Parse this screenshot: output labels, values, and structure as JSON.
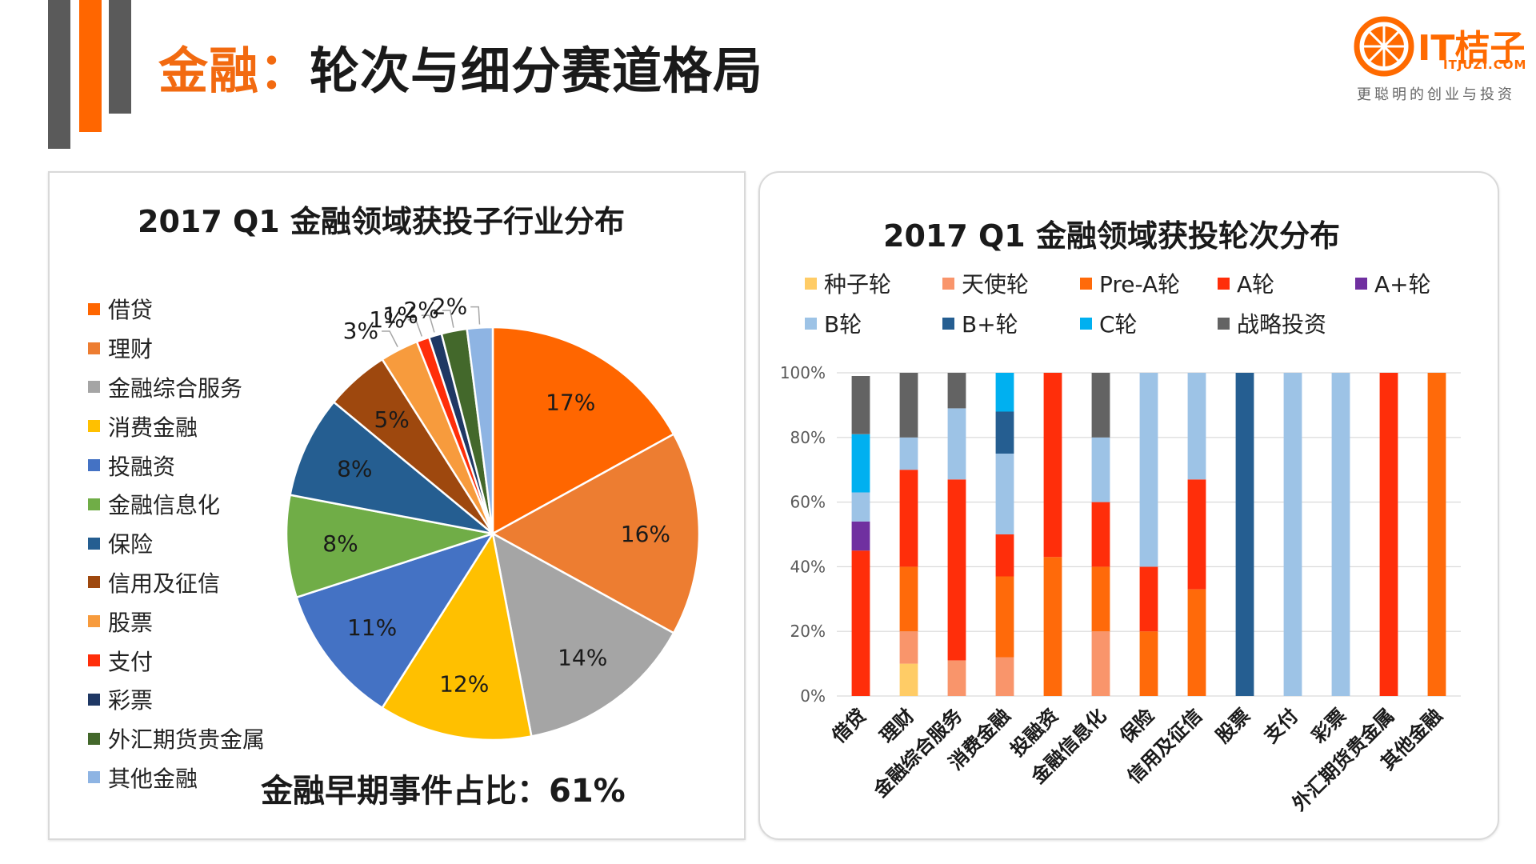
{
  "header": {
    "title_highlight": "金融：",
    "title_rest": "轮次与细分赛道格局"
  },
  "logo": {
    "brand": "IT桔子",
    "url": "ITJUZI.COM",
    "slogan": "更聪明的创业与投资",
    "brand_color": "#ff6a00"
  },
  "summary": "金融早期事件占比：61%",
  "chart_data": [
    {
      "type": "pie",
      "title": "2017 Q1 金融领域获投子行业分布",
      "categories": [
        "借贷",
        "理财",
        "金融综合服务",
        "消费金融",
        "投融资",
        "金融信息化",
        "保险",
        "信用及征信",
        "股票",
        "支付",
        "彩票",
        "外汇期货贵金属",
        "其他金融"
      ],
      "values": [
        17,
        16,
        14,
        12,
        11,
        8,
        8,
        5,
        3,
        1,
        1,
        2,
        2
      ],
      "labels": [
        "17%",
        "16%",
        "14%",
        "12%",
        "11%",
        "8%",
        "8%",
        "5%",
        "3%",
        "1%",
        "1%",
        "2%",
        "2%"
      ],
      "colors": [
        "#ff6600",
        "#ed7d31",
        "#a5a5a5",
        "#ffc000",
        "#4472c4",
        "#70ad47",
        "#255e91",
        "#9e480e",
        "#f79b3d",
        "#ff2e0a",
        "#1f3864",
        "#43682b",
        "#8eb4e3"
      ],
      "legend_position": "left"
    },
    {
      "type": "bar",
      "stacked": true,
      "title": "2017 Q1 金融领域获投轮次分布",
      "categories": [
        "借贷",
        "理财",
        "金融综合服务",
        "消费金融",
        "投融资",
        "金融信息化",
        "保险",
        "信用及征信",
        "股票",
        "支付",
        "彩票",
        "外汇期货贵金属",
        "其他金融"
      ],
      "yticks": [
        "0%",
        "20%",
        "40%",
        "60%",
        "80%",
        "100%"
      ],
      "ylim": [
        0,
        100
      ],
      "series": [
        {
          "name": "种子轮",
          "color": "#ffcc66",
          "values": [
            0,
            10,
            0,
            0,
            0,
            0,
            0,
            0,
            0,
            0,
            0,
            0,
            0
          ]
        },
        {
          "name": "天使轮",
          "color": "#f9956b",
          "values": [
            0,
            10,
            11,
            12,
            0,
            20,
            0,
            0,
            0,
            0,
            0,
            0,
            0
          ]
        },
        {
          "name": "Pre-A轮",
          "color": "#ff6a0a",
          "values": [
            0,
            20,
            0,
            25,
            43,
            20,
            20,
            33,
            0,
            0,
            0,
            0,
            100
          ]
        },
        {
          "name": "A轮",
          "color": "#ff2e0a",
          "values": [
            45,
            30,
            56,
            13,
            57,
            20,
            20,
            34,
            0,
            0,
            0,
            100,
            0
          ]
        },
        {
          "name": "A+轮",
          "color": "#7030a0",
          "values": [
            9,
            0,
            0,
            0,
            0,
            0,
            0,
            0,
            0,
            0,
            0,
            0,
            0
          ]
        },
        {
          "name": "B轮",
          "color": "#9dc3e6",
          "values": [
            9,
            10,
            22,
            25,
            0,
            20,
            60,
            33,
            0,
            100,
            100,
            0,
            0
          ]
        },
        {
          "name": "B+轮",
          "color": "#255e91",
          "values": [
            0,
            0,
            0,
            13,
            0,
            0,
            0,
            0,
            100,
            0,
            0,
            0,
            0
          ]
        },
        {
          "name": "C轮",
          "color": "#00b0f0",
          "values": [
            18,
            0,
            0,
            12,
            0,
            0,
            0,
            0,
            0,
            0,
            0,
            0,
            0
          ]
        },
        {
          "name": "战略投资",
          "color": "#636363",
          "values": [
            18,
            20,
            11,
            0,
            0,
            20,
            0,
            0,
            0,
            0,
            0,
            0,
            0
          ]
        }
      ],
      "legend_position": "top"
    }
  ]
}
